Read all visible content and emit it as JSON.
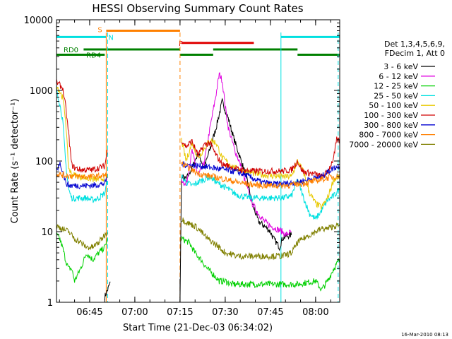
{
  "chart_data": {
    "type": "line",
    "title": "HESSI Observing Summary Count Rates",
    "xlabel": "Start Time (21-Dec-03 06:34:02)",
    "ylabel": "Count Rate (s⁻¹ detector⁻¹)",
    "ylim": [
      1,
      10000
    ],
    "yscale": "log",
    "xlim_minutes": [
      0,
      94
    ],
    "x_ticks": [
      {
        "minute": 11,
        "label": "06:45"
      },
      {
        "minute": 26,
        "label": "07:00"
      },
      {
        "minute": 41,
        "label": "07:15"
      },
      {
        "minute": 56,
        "label": "07:30"
      },
      {
        "minute": 71,
        "label": "07:45"
      },
      {
        "minute": 86,
        "label": "08:00"
      }
    ],
    "y_ticks": [
      {
        "value": 1,
        "label": "1"
      },
      {
        "value": 10,
        "label": "10"
      },
      {
        "value": 100,
        "label": "100"
      },
      {
        "value": 1000,
        "label": "1000"
      },
      {
        "value": 10000,
        "label": "10000"
      }
    ],
    "legend_header": [
      "Det 1,3,4,5,6,9,",
      "FDecim 1, Att 0"
    ],
    "legend_position": "right",
    "series": [
      {
        "name": "3 - 6 keV",
        "color": "#000000",
        "points": [
          [
            0,
            1
          ],
          [
            16,
            1.2
          ],
          [
            17,
            1.5
          ],
          [
            18,
            2
          ],
          [
            41,
            2
          ],
          [
            41,
            1
          ],
          [
            41.5,
            60
          ],
          [
            43,
            55
          ],
          [
            45,
            80
          ],
          [
            47,
            130
          ],
          [
            49,
            80
          ],
          [
            51,
            150
          ],
          [
            53,
            300
          ],
          [
            55,
            700
          ],
          [
            57,
            400
          ],
          [
            59,
            200
          ],
          [
            61,
            110
          ],
          [
            63,
            60
          ],
          [
            65,
            25
          ],
          [
            67,
            14
          ],
          [
            69,
            12
          ],
          [
            71,
            10
          ],
          [
            72,
            8
          ],
          [
            73,
            7
          ],
          [
            74,
            6
          ],
          [
            75,
            8
          ],
          [
            76,
            8.5
          ],
          [
            78,
            9
          ]
        ]
      },
      {
        "name": "6 - 12 keV",
        "color": "#e000e0",
        "points": [
          [
            41.5,
            55
          ],
          [
            43,
            45
          ],
          [
            45,
            140
          ],
          [
            47,
            60
          ],
          [
            49,
            95
          ],
          [
            51,
            300
          ],
          [
            53,
            900
          ],
          [
            54,
            1700
          ],
          [
            55,
            1400
          ],
          [
            56,
            600
          ],
          [
            57,
            300
          ],
          [
            59,
            150
          ],
          [
            61,
            90
          ],
          [
            63,
            45
          ],
          [
            65,
            25
          ],
          [
            67,
            18
          ],
          [
            69,
            14
          ],
          [
            71,
            12
          ],
          [
            73,
            11
          ],
          [
            75,
            10
          ],
          [
            76,
            9
          ],
          [
            78,
            10
          ]
        ]
      },
      {
        "name": "12 - 25 keV",
        "color": "#00d000",
        "points": [
          [
            0,
            9
          ],
          [
            1,
            8
          ],
          [
            2,
            6
          ],
          [
            3,
            4
          ],
          [
            4,
            3
          ],
          [
            5,
            3
          ],
          [
            6,
            2
          ],
          [
            8,
            3
          ],
          [
            10,
            5
          ],
          [
            12,
            4
          ],
          [
            14,
            5
          ],
          [
            16,
            6
          ],
          [
            17,
            8
          ],
          [
            41.5,
            8
          ],
          [
            44,
            7
          ],
          [
            46,
            5
          ],
          [
            48,
            4
          ],
          [
            50,
            3
          ],
          [
            52,
            2.5
          ],
          [
            54,
            2
          ],
          [
            56,
            2
          ],
          [
            58,
            1.8
          ],
          [
            60,
            1.8
          ],
          [
            70,
            1.8
          ],
          [
            80,
            1.8
          ],
          [
            86,
            2
          ],
          [
            88,
            1.5
          ],
          [
            90,
            2
          ],
          [
            92,
            3
          ],
          [
            94,
            4
          ]
        ]
      },
      {
        "name": "25 - 50 keV",
        "color": "#00e0e0",
        "points": [
          [
            0,
            1100
          ],
          [
            2,
            400
          ],
          [
            3,
            100
          ],
          [
            4,
            40
          ],
          [
            5,
            30
          ],
          [
            8,
            30
          ],
          [
            10,
            30
          ],
          [
            12,
            28
          ],
          [
            14,
            30
          ],
          [
            16,
            35
          ],
          [
            17,
            55
          ],
          [
            41.5,
            60
          ],
          [
            43,
            50
          ],
          [
            45,
            45
          ],
          [
            47,
            50
          ],
          [
            49,
            55
          ],
          [
            51,
            60
          ],
          [
            53,
            50
          ],
          [
            55,
            45
          ],
          [
            57,
            40
          ],
          [
            59,
            35
          ],
          [
            61,
            32
          ],
          [
            65,
            30
          ],
          [
            70,
            30
          ],
          [
            75,
            30
          ],
          [
            78,
            32
          ],
          [
            80,
            55
          ],
          [
            82,
            30
          ],
          [
            84,
            18
          ],
          [
            86,
            15
          ],
          [
            88,
            20
          ],
          [
            90,
            28
          ],
          [
            92,
            32
          ],
          [
            94,
            40
          ]
        ]
      },
      {
        "name": "50 - 100 keV",
        "color": "#e8c800",
        "points": [
          [
            0,
            1200
          ],
          [
            2,
            800
          ],
          [
            3,
            400
          ],
          [
            4,
            80
          ],
          [
            5,
            65
          ],
          [
            8,
            60
          ],
          [
            12,
            55
          ],
          [
            14,
            55
          ],
          [
            16,
            58
          ],
          [
            17,
            65
          ],
          [
            41.5,
            200
          ],
          [
            43,
            100
          ],
          [
            45,
            180
          ],
          [
            47,
            110
          ],
          [
            49,
            150
          ],
          [
            51,
            200
          ],
          [
            53,
            180
          ],
          [
            55,
            110
          ],
          [
            57,
            95
          ],
          [
            59,
            80
          ],
          [
            61,
            75
          ],
          [
            63,
            70
          ],
          [
            67,
            65
          ],
          [
            71,
            62
          ],
          [
            75,
            60
          ],
          [
            78,
            60
          ],
          [
            80,
            100
          ],
          [
            82,
            70
          ],
          [
            84,
            35
          ],
          [
            86,
            25
          ],
          [
            88,
            22
          ],
          [
            90,
            30
          ],
          [
            92,
            55
          ],
          [
            94,
            60
          ]
        ]
      },
      {
        "name": "100 - 300 keV",
        "color": "#d00000",
        "points": [
          [
            0,
            1300
          ],
          [
            2,
            1100
          ],
          [
            3,
            600
          ],
          [
            4,
            250
          ],
          [
            5,
            90
          ],
          [
            6,
            80
          ],
          [
            8,
            75
          ],
          [
            10,
            75
          ],
          [
            12,
            75
          ],
          [
            14,
            80
          ],
          [
            16,
            85
          ],
          [
            17,
            150
          ],
          [
            41.5,
            200
          ],
          [
            43,
            160
          ],
          [
            45,
            190
          ],
          [
            47,
            120
          ],
          [
            49,
            170
          ],
          [
            51,
            180
          ],
          [
            53,
            120
          ],
          [
            55,
            90
          ],
          [
            57,
            85
          ],
          [
            59,
            78
          ],
          [
            61,
            75
          ],
          [
            65,
            72
          ],
          [
            70,
            72
          ],
          [
            75,
            72
          ],
          [
            78,
            75
          ],
          [
            80,
            100
          ],
          [
            81,
            80
          ],
          [
            82,
            70
          ],
          [
            86,
            65
          ],
          [
            88,
            60
          ],
          [
            90,
            70
          ],
          [
            92,
            110
          ],
          [
            93,
            200
          ],
          [
            94,
            190
          ]
        ]
      },
      {
        "name": "300 - 800 keV",
        "color": "#0000d0",
        "points": [
          [
            0,
            70
          ],
          [
            1,
            95
          ],
          [
            2,
            75
          ],
          [
            3,
            50
          ],
          [
            4,
            45
          ],
          [
            8,
            45
          ],
          [
            12,
            45
          ],
          [
            16,
            48
          ],
          [
            17,
            60
          ],
          [
            41.5,
            90
          ],
          [
            44,
            88
          ],
          [
            48,
            85
          ],
          [
            52,
            80
          ],
          [
            56,
            75
          ],
          [
            60,
            70
          ],
          [
            64,
            60
          ],
          [
            68,
            50
          ],
          [
            72,
            47
          ],
          [
            76,
            48
          ],
          [
            80,
            50
          ],
          [
            84,
            55
          ],
          [
            88,
            60
          ],
          [
            90,
            70
          ],
          [
            92,
            80
          ],
          [
            94,
            85
          ]
        ]
      },
      {
        "name": "800 - 7000 keV",
        "color": "#ff8000",
        "points": [
          [
            0,
            65
          ],
          [
            4,
            62
          ],
          [
            8,
            60
          ],
          [
            12,
            60
          ],
          [
            16,
            62
          ],
          [
            17,
            65
          ],
          [
            41.5,
            90
          ],
          [
            44,
            80
          ],
          [
            46,
            70
          ],
          [
            48,
            65
          ],
          [
            52,
            60
          ],
          [
            56,
            55
          ],
          [
            60,
            50
          ],
          [
            64,
            47
          ],
          [
            68,
            45
          ],
          [
            72,
            45
          ],
          [
            76,
            45
          ],
          [
            80,
            47
          ],
          [
            84,
            50
          ],
          [
            88,
            55
          ],
          [
            90,
            58
          ],
          [
            92,
            60
          ],
          [
            94,
            62
          ]
        ]
      },
      {
        "name": "7000 - 20000 keV",
        "color": "#808000",
        "points": [
          [
            0,
            12
          ],
          [
            2,
            11
          ],
          [
            4,
            10
          ],
          [
            6,
            8
          ],
          [
            8,
            7
          ],
          [
            10,
            6
          ],
          [
            12,
            6
          ],
          [
            14,
            7
          ],
          [
            16,
            9
          ],
          [
            17,
            10
          ],
          [
            41.5,
            15
          ],
          [
            44,
            13
          ],
          [
            46,
            12
          ],
          [
            48,
            10
          ],
          [
            50,
            8
          ],
          [
            52,
            7
          ],
          [
            54,
            6
          ],
          [
            56,
            5
          ],
          [
            58,
            4.8
          ],
          [
            60,
            4.5
          ],
          [
            70,
            4.5
          ],
          [
            75,
            4.5
          ],
          [
            78,
            5
          ],
          [
            80,
            7
          ],
          [
            82,
            8
          ],
          [
            84,
            9
          ],
          [
            86,
            10
          ],
          [
            88,
            11
          ],
          [
            90,
            11
          ],
          [
            92,
            12
          ],
          [
            94,
            12
          ]
        ]
      }
    ],
    "state_flags": [
      {
        "label": "S",
        "color": "#ff8000",
        "value": 7000,
        "from": 16.5,
        "to": 41.0
      },
      {
        "label": "N",
        "color": "#00e0e0",
        "value": 5700,
        "from": 0,
        "to": 16.5
      },
      {
        "label": "",
        "color": "#00e0e0",
        "value": 5700,
        "from": 74.5,
        "to": 94
      },
      {
        "label": "F",
        "color": "#e00000",
        "value": 4700,
        "from": 41.5,
        "to": 65.5
      },
      {
        "label": "RD0",
        "color": "#008000",
        "value": 3800,
        "from": 9,
        "to": 41
      },
      {
        "label": "",
        "color": "#008000",
        "value": 3800,
        "from": 52,
        "to": 80
      },
      {
        "label": "RD4",
        "color": "#008000",
        "value": 3200,
        "from": 0,
        "to": 16
      },
      {
        "label": "",
        "color": "#008000",
        "value": 3200,
        "from": 41,
        "to": 52
      },
      {
        "label": "",
        "color": "#008000",
        "value": 3200,
        "from": 80,
        "to": 94
      }
    ],
    "vertical_markers": [
      {
        "minute": 0,
        "color": "#00e0e0",
        "style": "solid"
      },
      {
        "minute": 16.5,
        "color": "#ff8000",
        "style": "solid"
      },
      {
        "minute": 17,
        "color": "#00e0e0",
        "style": "dashed"
      },
      {
        "minute": 41.0,
        "color": "#ff8000",
        "style": "dashed"
      },
      {
        "minute": 74.5,
        "color": "#00e0e0",
        "style": "solid"
      },
      {
        "minute": 93.5,
        "color": "#00e0e0",
        "style": "dashed"
      }
    ]
  },
  "footer": {
    "date_stamp": "16-Mar-2010 08:13"
  }
}
